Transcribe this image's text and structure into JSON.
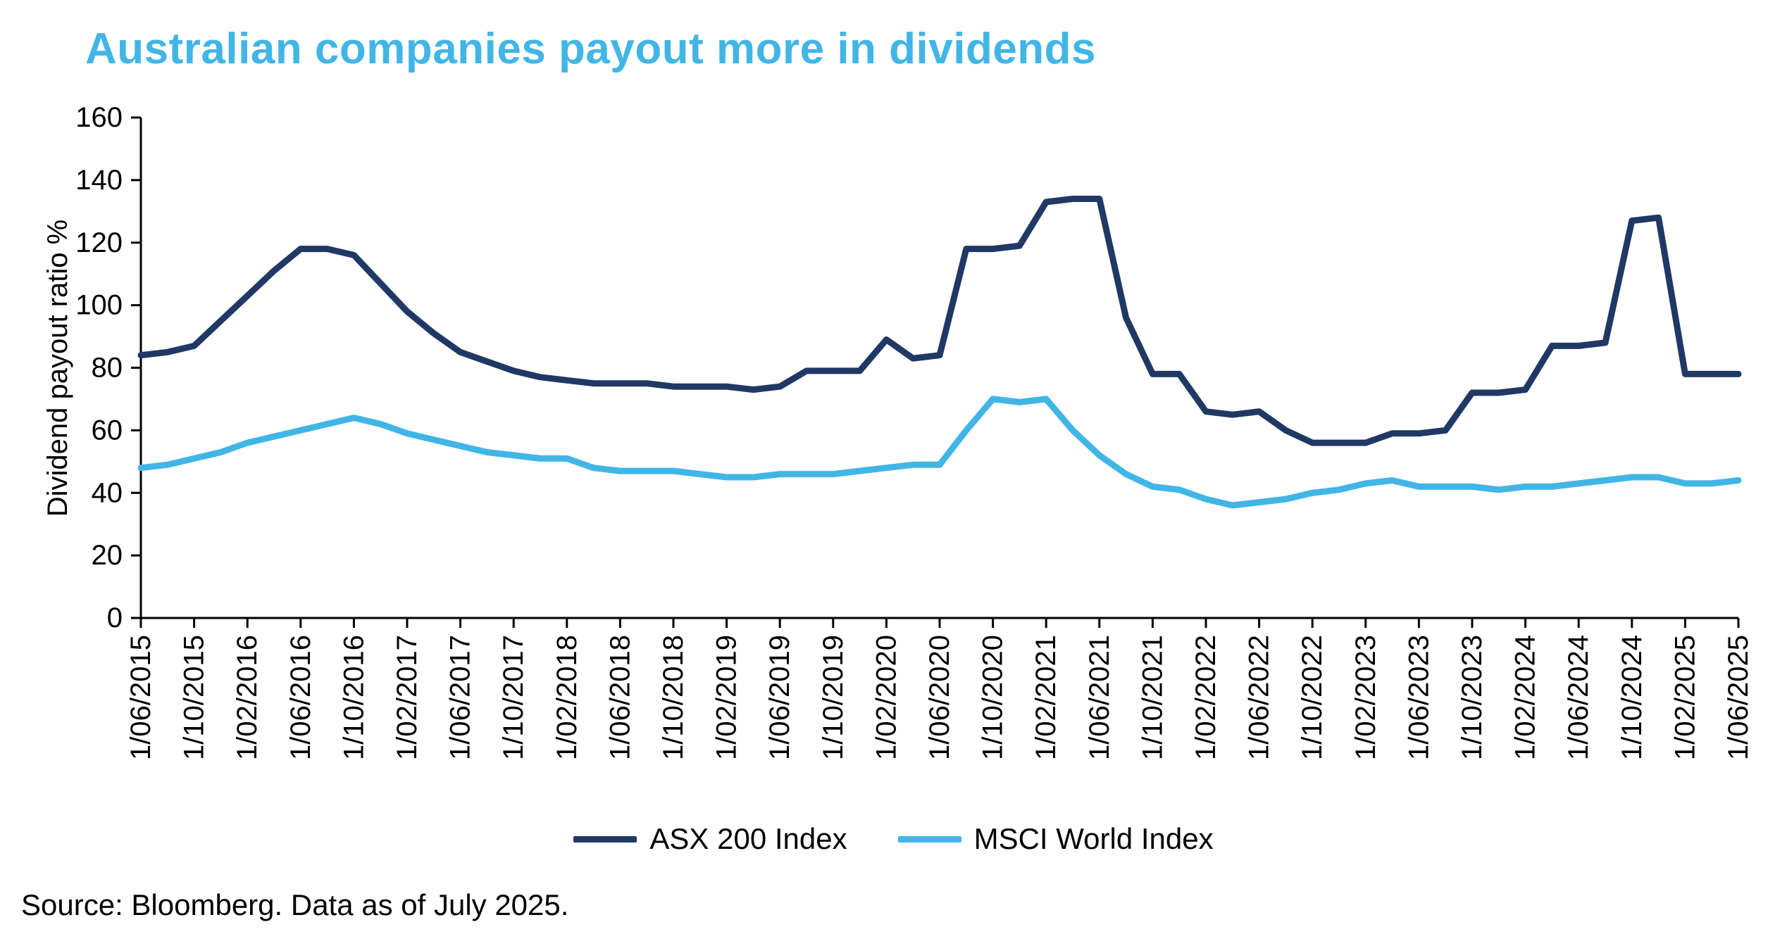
{
  "title": "Australian companies payout more in dividends",
  "source_note": "Source: Bloomberg. Data as of July 2025.",
  "colors": {
    "title": "#41b6e6",
    "axis_line": "#000000",
    "tick_text": "#000000"
  },
  "chart_data": {
    "type": "line",
    "title": "Australian companies payout more in dividends",
    "xlabel": "",
    "ylabel": "Dividend payout ratio %",
    "ylim": [
      0,
      160
    ],
    "ytick_step": 20,
    "grid": false,
    "legend_position": "bottom",
    "label_every": 2,
    "x_tick_labels": [
      "1/06/2015",
      "1/10/2015",
      "1/02/2016",
      "1/06/2016",
      "1/10/2016",
      "1/02/2017",
      "1/06/2017",
      "1/10/2017",
      "1/02/2018",
      "1/06/2018",
      "1/10/2018",
      "1/02/2019",
      "1/06/2019",
      "1/10/2019",
      "1/02/2020",
      "1/06/2020",
      "1/10/2020",
      "1/02/2021",
      "1/06/2021",
      "1/10/2021",
      "1/02/2022",
      "1/06/2022",
      "1/10/2022",
      "1/02/2023",
      "1/06/2023",
      "1/10/2023",
      "1/02/2024",
      "1/06/2024",
      "1/10/2024",
      "1/02/2025",
      "1/06/2025"
    ],
    "x": [
      "1/06/2015",
      "1/08/2015",
      "1/10/2015",
      "1/12/2015",
      "1/02/2016",
      "1/04/2016",
      "1/06/2016",
      "1/08/2016",
      "1/10/2016",
      "1/12/2016",
      "1/02/2017",
      "1/04/2017",
      "1/06/2017",
      "1/08/2017",
      "1/10/2017",
      "1/12/2017",
      "1/02/2018",
      "1/04/2018",
      "1/06/2018",
      "1/08/2018",
      "1/10/2018",
      "1/12/2018",
      "1/02/2019",
      "1/04/2019",
      "1/06/2019",
      "1/08/2019",
      "1/10/2019",
      "1/12/2019",
      "1/02/2020",
      "1/04/2020",
      "1/06/2020",
      "1/08/2020",
      "1/10/2020",
      "1/12/2020",
      "1/02/2021",
      "1/04/2021",
      "1/06/2021",
      "1/08/2021",
      "1/10/2021",
      "1/12/2021",
      "1/02/2022",
      "1/04/2022",
      "1/06/2022",
      "1/08/2022",
      "1/10/2022",
      "1/12/2022",
      "1/02/2023",
      "1/04/2023",
      "1/06/2023",
      "1/08/2023",
      "1/10/2023",
      "1/12/2023",
      "1/02/2024",
      "1/04/2024",
      "1/06/2024",
      "1/08/2024",
      "1/10/2024",
      "1/12/2024",
      "1/02/2025",
      "1/04/2025",
      "1/06/2025"
    ],
    "series": [
      {
        "name": "ASX 200 Index",
        "color": "#1f3864",
        "values": [
          84,
          85,
          87,
          95,
          103,
          111,
          118,
          118,
          116,
          107,
          98,
          91,
          85,
          82,
          79,
          77,
          76,
          75,
          75,
          75,
          74,
          74,
          74,
          73,
          74,
          79,
          79,
          79,
          89,
          83,
          84,
          118,
          118,
          119,
          133,
          134,
          134,
          96,
          78,
          78,
          66,
          65,
          66,
          60,
          56,
          56,
          56,
          59,
          59,
          60,
          72,
          72,
          73,
          87,
          87,
          88,
          127,
          128,
          78,
          78,
          78
        ]
      },
      {
        "name": "MSCI World Index",
        "color": "#41b6e6",
        "values": [
          48,
          49,
          51,
          53,
          56,
          58,
          60,
          62,
          64,
          62,
          59,
          57,
          55,
          53,
          52,
          51,
          51,
          48,
          47,
          47,
          47,
          46,
          45,
          45,
          46,
          46,
          46,
          47,
          48,
          49,
          49,
          60,
          70,
          69,
          70,
          60,
          52,
          46,
          42,
          41,
          38,
          36,
          37,
          38,
          40,
          41,
          43,
          44,
          42,
          42,
          42,
          41,
          42,
          42,
          43,
          44,
          45,
          45,
          43,
          43,
          44
        ]
      }
    ]
  }
}
